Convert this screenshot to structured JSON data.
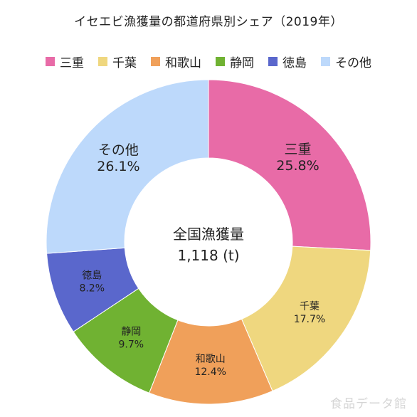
{
  "chart_data": {
    "type": "pie",
    "title": "イセエビ漁獲量の都道府県別シェア（2019年）",
    "center_label": "全国漁獲量",
    "center_value": "1,118 (t)",
    "legend_position": "top",
    "slices": [
      {
        "name": "三重",
        "value": 25.8,
        "label": "25.8%",
        "color": "#e86ba7"
      },
      {
        "name": "千葉",
        "value": 17.7,
        "label": "17.7%",
        "color": "#efd77f"
      },
      {
        "name": "和歌山",
        "value": 12.4,
        "label": "12.4%",
        "color": "#f0a05a"
      },
      {
        "name": "静岡",
        "value": 9.7,
        "label": "9.7%",
        "color": "#70b232"
      },
      {
        "name": "徳島",
        "value": 8.2,
        "label": "8.2%",
        "color": "#5a67cc"
      },
      {
        "name": "その他",
        "value": 26.1,
        "label": "26.1%",
        "color": "#bdd9fb"
      }
    ]
  },
  "watermark": "食品データ館"
}
